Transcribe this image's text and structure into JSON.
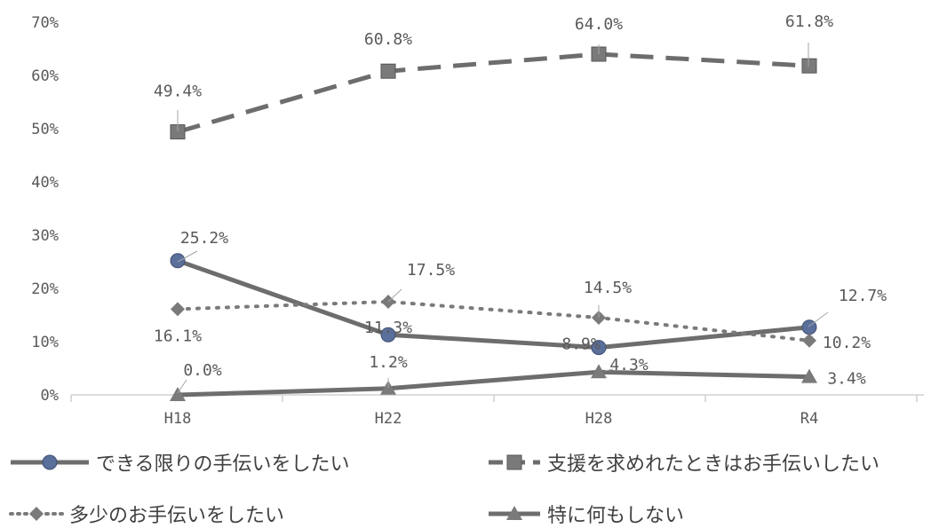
{
  "chart_data": {
    "type": "line",
    "categories": [
      "H18",
      "H22",
      "H28",
      "R4"
    ],
    "yticks": [
      "0%",
      "10%",
      "20%",
      "30%",
      "40%",
      "50%",
      "60%",
      "70%"
    ],
    "ylim": [
      0,
      70
    ],
    "grid": false,
    "legend_position": "bottom",
    "series": [
      {
        "name": "できる限りの手伝いをしたい",
        "values": [
          25.2,
          11.3,
          8.9,
          12.7
        ],
        "labels": [
          "25.2%",
          "11.3%",
          "8.9%",
          "12.7%"
        ],
        "marker": "circle",
        "line_style": "solid",
        "color": "#6d6d6d",
        "marker_color": "#5b6f9b"
      },
      {
        "name": "支援を求めれたときはお手伝いしたい",
        "values": [
          49.4,
          60.8,
          64.0,
          61.8
        ],
        "labels": [
          "49.4%",
          "60.8%",
          "64.0%",
          "61.8%"
        ],
        "marker": "square",
        "line_style": "dashed",
        "color": "#6d6d6d",
        "marker_color": "#7a7a7a"
      },
      {
        "name": "多少のお手伝いをしたい",
        "values": [
          16.1,
          17.5,
          14.5,
          10.2
        ],
        "labels": [
          "16.1%",
          "17.5%",
          "14.5%",
          "10.2%"
        ],
        "marker": "diamond",
        "line_style": "dotted",
        "color": "#7a7a7a",
        "marker_color": "#7a7a7a"
      },
      {
        "name": "特に何もしない",
        "values": [
          0.0,
          1.2,
          4.3,
          3.4
        ],
        "labels": [
          "0.0%",
          "1.2%",
          "4.3%",
          "3.4%"
        ],
        "marker": "triangle",
        "line_style": "solid",
        "color": "#6d6d6d",
        "marker_color": "#7a7a7a"
      }
    ]
  }
}
